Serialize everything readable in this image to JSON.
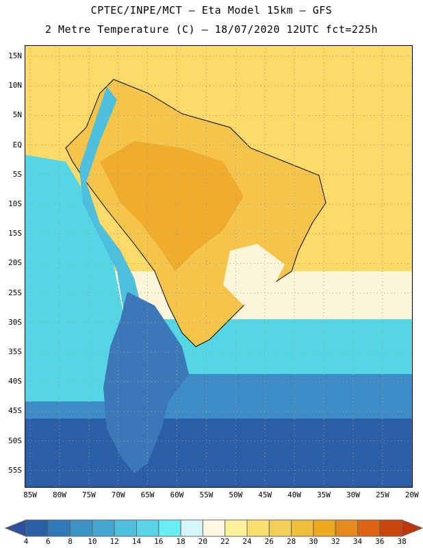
{
  "header": {
    "line1": "CPTEC/INPE/MCT –  Eta Model 15km – GFS",
    "line2": "2 Metre Temperature (C) – 18/07/2020 12UTC fct=225h"
  },
  "map": {
    "lat_labels": [
      "15N",
      "10N",
      "5N",
      "EQ",
      "5S",
      "10S",
      "15S",
      "20S",
      "25S",
      "30S",
      "35S",
      "40S",
      "45S",
      "50S",
      "55S"
    ],
    "lon_labels": [
      "85W",
      "80W",
      "75W",
      "70W",
      "65W",
      "60W",
      "55W",
      "50W",
      "45W",
      "40W",
      "35W",
      "30W",
      "25W",
      "20W"
    ]
  },
  "colorbar": {
    "labels": [
      "4",
      "6",
      "8",
      "10",
      "12",
      "14",
      "16",
      "18",
      "20",
      "22",
      "24",
      "26",
      "28",
      "30",
      "32",
      "34",
      "36",
      "38"
    ],
    "colors": [
      "#2a5ea6",
      "#3079b8",
      "#3a92c6",
      "#45a6d2",
      "#4fbfde",
      "#58d4e6",
      "#66eef4",
      "#d4f6fb",
      "#fdf7e0",
      "#fbf19a",
      "#f8de6e",
      "#f4cf57",
      "#efbf3a",
      "#ecaa1e",
      "#e58a1c",
      "#dc6410",
      "#c94408"
    ],
    "low_color": "#2c4f9e",
    "high_color": "#c0360a"
  },
  "colors": {
    "ocean_north": "#fbda68",
    "ocean_mid": "#fdf5d8",
    "ocean_cool": "#55d6e4",
    "ocean_cold": "#3d8cc6",
    "ocean_far_south": "#2a5ea6",
    "land_hot": "#f0ac2c",
    "land_warm": "#f5c44a",
    "andes": "#4fbfde",
    "patagonia": "#3a78b8"
  }
}
